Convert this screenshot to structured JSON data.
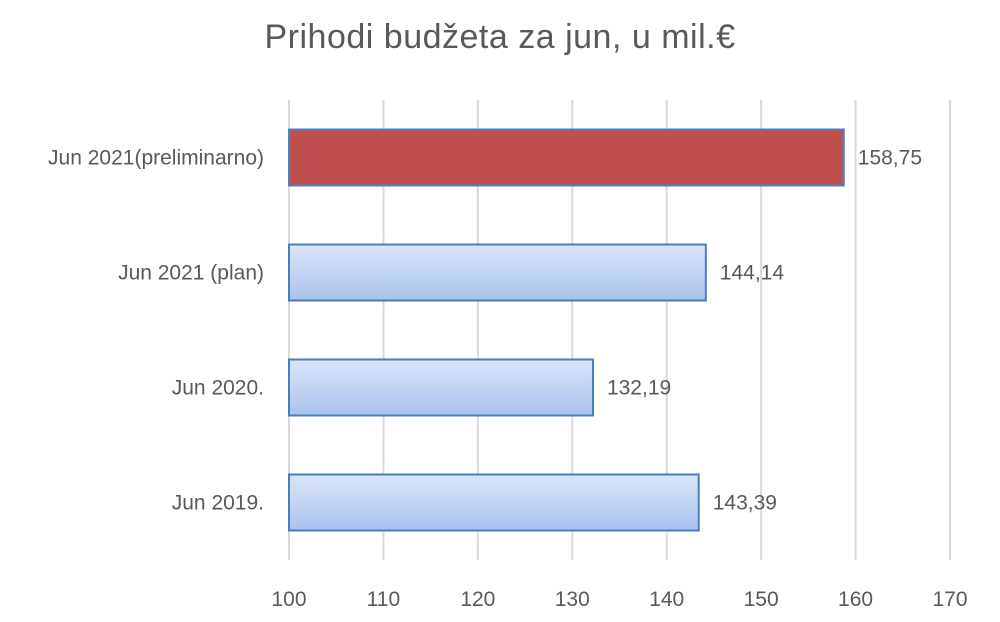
{
  "chart_data": {
    "type": "bar",
    "orientation": "horizontal",
    "title": "Prihodi  budžeta  za jun,  u mil.€",
    "categories": [
      "Jun 2021(preliminarno)",
      "Jun 2021 (plan)",
      "Jun 2020.",
      "Jun 2019."
    ],
    "values": [
      158.75,
      144.14,
      132.19,
      143.39
    ],
    "value_labels": [
      "158,75",
      "144,14",
      "132,19",
      "143,39"
    ],
    "xlim": [
      100,
      170
    ],
    "xticks": [
      100,
      110,
      120,
      130,
      140,
      150,
      160,
      170
    ],
    "grid": true,
    "legend": "none",
    "colors": {
      "highlight": "#c0504d",
      "highlight_border": "#4f81bd",
      "bar_light": "#dbe5f8",
      "bar_dark": "#a9c3ee",
      "bar_border": "#4a7ebb",
      "grid": "#d9d9d9",
      "text": "#595959"
    },
    "highlight_index": 0
  }
}
